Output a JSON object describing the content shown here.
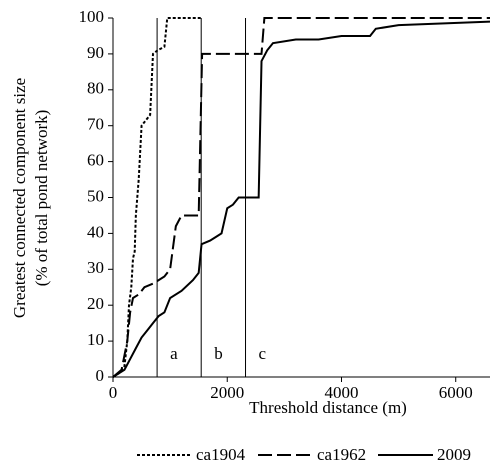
{
  "chart_data": {
    "type": "line",
    "x_label": "Threshold distance (m)",
    "y_label": [
      "Greatest connected component size",
      "(% of total pond network)"
    ],
    "xlim": [
      0,
      6600
    ],
    "xticks": [
      0,
      2000,
      4000,
      6000
    ],
    "ylim": [
      0,
      100
    ],
    "yticks": [
      0,
      10,
      20,
      30,
      40,
      50,
      60,
      70,
      80,
      90,
      100
    ],
    "markers": [
      {
        "x": 772,
        "label": "a"
      },
      {
        "x": 1544,
        "label": "b"
      },
      {
        "x": 2320,
        "label": "c"
      }
    ],
    "series": [
      {
        "name": "ca1904",
        "color": "#000000",
        "dash": "3,2",
        "x": [
          0,
          100,
          200,
          250,
          280,
          320,
          350,
          380,
          400,
          450,
          500,
          600,
          650,
          700,
          780,
          900,
          950,
          1550
        ],
        "values": [
          0,
          1,
          3,
          10,
          20,
          25,
          33,
          35,
          45,
          55,
          70,
          72,
          73,
          90,
          91,
          92,
          100,
          100
        ]
      },
      {
        "name": "ca1962",
        "color": "#000000",
        "dash": "14,5",
        "x": [
          0,
          150,
          250,
          300,
          350,
          450,
          550,
          700,
          900,
          1000,
          1100,
          1200,
          1500,
          1560,
          2600,
          2650,
          6600
        ],
        "values": [
          0,
          2,
          10,
          18,
          22,
          23,
          25,
          26,
          28,
          30,
          42,
          45,
          45,
          90,
          90,
          100,
          100
        ]
      },
      {
        "name": "2009",
        "color": "#000000",
        "dash": "none",
        "x": [
          0,
          200,
          300,
          400,
          500,
          600,
          700,
          800,
          900,
          1000,
          1200,
          1400,
          1500,
          1550,
          1700,
          1800,
          1900,
          2000,
          2100,
          2200,
          2550,
          2600,
          2700,
          2800,
          3200,
          3600,
          4000,
          4500,
          4600,
          5000,
          6600
        ],
        "values": [
          0,
          2,
          5,
          8,
          11,
          13,
          15,
          17,
          18,
          22,
          24,
          27,
          29,
          37,
          38,
          39,
          40,
          47,
          48,
          50,
          50,
          88,
          91,
          93,
          94,
          94,
          95,
          95,
          97,
          98,
          99
        ]
      }
    ]
  }
}
